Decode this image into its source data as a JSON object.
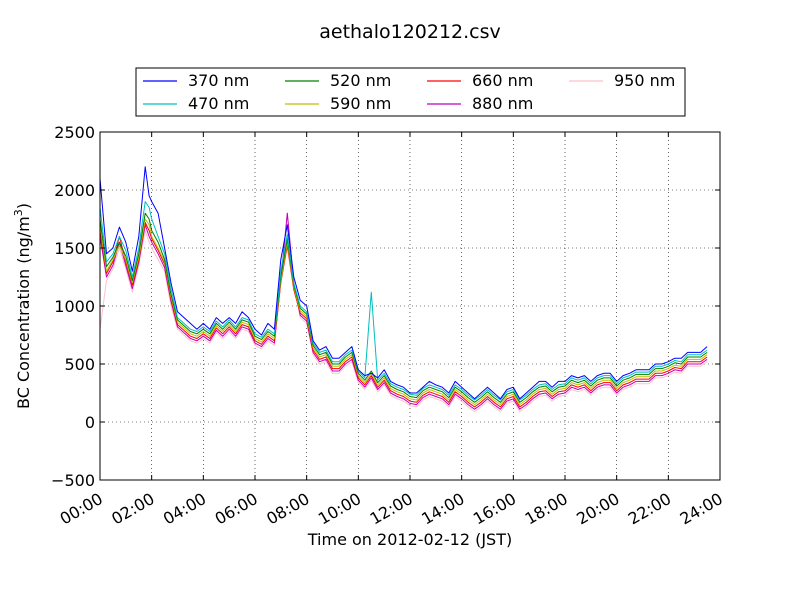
{
  "chart_data": {
    "type": "line",
    "title": "aethalo120212.csv",
    "xlabel": "Time on 2012-02-12 (JST)",
    "ylabel": "BC Concentration (ng/m",
    "ylabel_sup": "3",
    "ylabel_close": ")",
    "xlim": [
      0,
      24
    ],
    "ylim": [
      -500,
      2500
    ],
    "grid": true,
    "legend_position": "top, above plot",
    "xticks": [
      0,
      2,
      4,
      6,
      8,
      10,
      12,
      14,
      16,
      18,
      20,
      22,
      24
    ],
    "xtick_labels": [
      "00:00",
      "02:00",
      "04:00",
      "06:00",
      "08:00",
      "10:00",
      "12:00",
      "14:00",
      "16:00",
      "18:00",
      "20:00",
      "22:00",
      "24:00"
    ],
    "yticks": [
      -500,
      0,
      500,
      1000,
      1500,
      2000,
      2500
    ],
    "ytick_labels": [
      "−500",
      "0",
      "500",
      "1000",
      "1500",
      "2000",
      "2500"
    ],
    "x_hours": [
      0.0,
      0.25,
      0.5,
      0.75,
      1.0,
      1.25,
      1.5,
      1.75,
      1.9,
      2.0,
      2.25,
      2.5,
      2.75,
      3.0,
      3.25,
      3.5,
      3.75,
      4.0,
      4.25,
      4.5,
      4.75,
      5.0,
      5.25,
      5.5,
      5.75,
      6.0,
      6.25,
      6.5,
      6.75,
      7.0,
      7.25,
      7.5,
      7.75,
      8.0,
      8.25,
      8.5,
      8.75,
      9.0,
      9.25,
      9.5,
      9.75,
      10.0,
      10.25,
      10.5,
      10.75,
      11.0,
      11.25,
      11.5,
      11.75,
      12.0,
      12.25,
      12.5,
      12.75,
      13.0,
      13.25,
      13.5,
      13.75,
      14.0,
      14.25,
      14.5,
      14.75,
      15.0,
      15.25,
      15.5,
      15.75,
      16.0,
      16.25,
      16.5,
      16.75,
      17.0,
      17.25,
      17.5,
      17.75,
      18.0,
      18.25,
      18.5,
      18.75,
      19.0,
      19.25,
      19.5,
      19.75,
      20.0,
      20.25,
      20.5,
      20.75,
      21.0,
      21.25,
      21.5,
      21.75,
      22.0,
      22.25,
      22.5,
      22.75,
      23.0,
      23.25,
      23.5,
      23.75
    ],
    "series": [
      {
        "name": "370 nm",
        "color": "#0000ff",
        "values": [
          2100,
          1450,
          1500,
          1680,
          1550,
          1300,
          1600,
          2200,
          1950,
          1900,
          1800,
          1500,
          1200,
          950,
          900,
          850,
          800,
          850,
          800,
          900,
          850,
          900,
          850,
          950,
          900,
          800,
          750,
          850,
          800,
          1400,
          1700,
          1250,
          1050,
          1000,
          700,
          620,
          650,
          550,
          550,
          600,
          650,
          450,
          400,
          420,
          380,
          450,
          350,
          320,
          300,
          250,
          250,
          300,
          350,
          320,
          300,
          250,
          350,
          300,
          250,
          200,
          250,
          300,
          250,
          200,
          280,
          300,
          200,
          250,
          300,
          350,
          350,
          300,
          350,
          350,
          400,
          380,
          400,
          350,
          400,
          420,
          420,
          350,
          400,
          420,
          450,
          450,
          450,
          500,
          500,
          520,
          550,
          550,
          600,
          600,
          600,
          650
        ]
      },
      {
        "name": "470 nm",
        "color": "#00bfbf",
        "values": [
          1850,
          1380,
          1450,
          1600,
          1480,
          1250,
          1500,
          1900,
          1850,
          1750,
          1600,
          1450,
          1150,
          900,
          850,
          800,
          780,
          820,
          780,
          870,
          820,
          880,
          820,
          900,
          880,
          760,
          730,
          800,
          760,
          1300,
          1620,
          1200,
          1000,
          950,
          680,
          600,
          620,
          520,
          520,
          580,
          620,
          440,
          380,
          1120,
          360,
          420,
          330,
          300,
          280,
          240,
          230,
          290,
          320,
          300,
          280,
          230,
          320,
          280,
          230,
          190,
          230,
          280,
          230,
          190,
          260,
          280,
          190,
          230,
          280,
          320,
          330,
          280,
          320,
          330,
          380,
          360,
          380,
          330,
          380,
          400,
          400,
          330,
          380,
          400,
          430,
          430,
          430,
          480,
          480,
          500,
          530,
          520,
          580,
          580,
          580,
          620
        ]
      },
      {
        "name": "520 nm",
        "color": "#008000",
        "values": [
          1750,
          1340,
          1420,
          1550,
          1430,
          1220,
          1450,
          1800,
          1750,
          1650,
          1550,
          1400,
          1100,
          880,
          830,
          780,
          760,
          800,
          760,
          850,
          800,
          860,
          800,
          880,
          860,
          740,
          710,
          780,
          740,
          1250,
          1580,
          1180,
          980,
          930,
          660,
          580,
          600,
          500,
          500,
          560,
          600,
          420,
          360,
          440,
          340,
          400,
          310,
          280,
          260,
          220,
          210,
          270,
          300,
          280,
          260,
          210,
          300,
          260,
          210,
          170,
          210,
          260,
          210,
          170,
          240,
          260,
          170,
          210,
          260,
          300,
          310,
          260,
          300,
          310,
          360,
          340,
          360,
          310,
          360,
          380,
          380,
          310,
          360,
          380,
          410,
          410,
          410,
          460,
          460,
          480,
          510,
          500,
          560,
          560,
          560,
          600
        ]
      },
      {
        "name": "590 nm",
        "color": "#bfbf00",
        "values": [
          1700,
          1300,
          1400,
          1520,
          1400,
          1200,
          1420,
          1750,
          1700,
          1600,
          1500,
          1380,
          1080,
          860,
          810,
          760,
          740,
          780,
          740,
          830,
          780,
          840,
          780,
          860,
          840,
          720,
          690,
          760,
          720,
          1220,
          1550,
          1160,
          960,
          910,
          640,
          560,
          580,
          480,
          480,
          540,
          580,
          400,
          340,
          420,
          320,
          380,
          290,
          260,
          240,
          200,
          190,
          250,
          280,
          260,
          240,
          190,
          280,
          240,
          190,
          150,
          190,
          240,
          190,
          150,
          220,
          240,
          150,
          190,
          240,
          280,
          290,
          240,
          280,
          290,
          340,
          320,
          340,
          290,
          340,
          360,
          360,
          290,
          340,
          360,
          390,
          390,
          390,
          440,
          440,
          460,
          490,
          480,
          540,
          540,
          540,
          580
        ]
      },
      {
        "name": "660 nm",
        "color": "#ff0000",
        "values": [
          1650,
          1280,
          1380,
          1600,
          1380,
          1180,
          1400,
          1720,
          1650,
          1580,
          1480,
          1360,
          1060,
          840,
          790,
          740,
          720,
          760,
          720,
          810,
          760,
          820,
          760,
          840,
          820,
          700,
          670,
          740,
          700,
          1200,
          1520,
          1140,
          940,
          890,
          620,
          540,
          560,
          460,
          460,
          520,
          560,
          380,
          320,
          400,
          300,
          360,
          270,
          240,
          220,
          180,
          170,
          230,
          260,
          240,
          220,
          170,
          260,
          220,
          170,
          130,
          170,
          220,
          170,
          130,
          200,
          220,
          130,
          170,
          220,
          260,
          270,
          220,
          260,
          270,
          320,
          300,
          320,
          270,
          320,
          340,
          340,
          270,
          320,
          340,
          370,
          370,
          370,
          420,
          420,
          440,
          470,
          460,
          520,
          520,
          520,
          560
        ]
      },
      {
        "name": "880 nm",
        "color": "#bf00bf",
        "values": [
          1600,
          1250,
          1350,
          1550,
          1350,
          1150,
          1380,
          1700,
          1600,
          1550,
          1450,
          1330,
          1040,
          820,
          770,
          720,
          700,
          740,
          700,
          790,
          740,
          800,
          740,
          820,
          800,
          680,
          650,
          720,
          680,
          1220,
          1800,
          1200,
          920,
          870,
          600,
          520,
          540,
          440,
          440,
          500,
          540,
          360,
          300,
          380,
          280,
          340,
          250,
          220,
          200,
          160,
          150,
          210,
          240,
          220,
          200,
          150,
          240,
          200,
          150,
          110,
          150,
          200,
          150,
          110,
          180,
          200,
          110,
          150,
          200,
          240,
          250,
          200,
          240,
          250,
          300,
          280,
          300,
          250,
          300,
          320,
          320,
          250,
          300,
          320,
          350,
          350,
          350,
          400,
          400,
          420,
          450,
          440,
          500,
          500,
          500,
          540
        ]
      },
      {
        "name": "950 nm",
        "color": "#ffc0cb",
        "values": [
          800,
          1220,
          1320,
          1500,
          1320,
          1120,
          1350,
          1650,
          1550,
          1500,
          1400,
          1300,
          1000,
          800,
          750,
          700,
          680,
          720,
          680,
          770,
          720,
          780,
          720,
          800,
          780,
          660,
          630,
          700,
          660,
          1200,
          1800,
          1180,
          900,
          850,
          580,
          500,
          520,
          420,
          420,
          480,
          520,
          340,
          280,
          360,
          260,
          320,
          230,
          200,
          180,
          140,
          130,
          190,
          220,
          200,
          180,
          130,
          220,
          180,
          130,
          90,
          130,
          180,
          130,
          90,
          160,
          180,
          90,
          130,
          180,
          220,
          230,
          180,
          220,
          230,
          280,
          260,
          280,
          230,
          280,
          300,
          300,
          230,
          280,
          300,
          330,
          330,
          330,
          380,
          380,
          400,
          430,
          420,
          480,
          480,
          480,
          520
        ]
      }
    ]
  }
}
